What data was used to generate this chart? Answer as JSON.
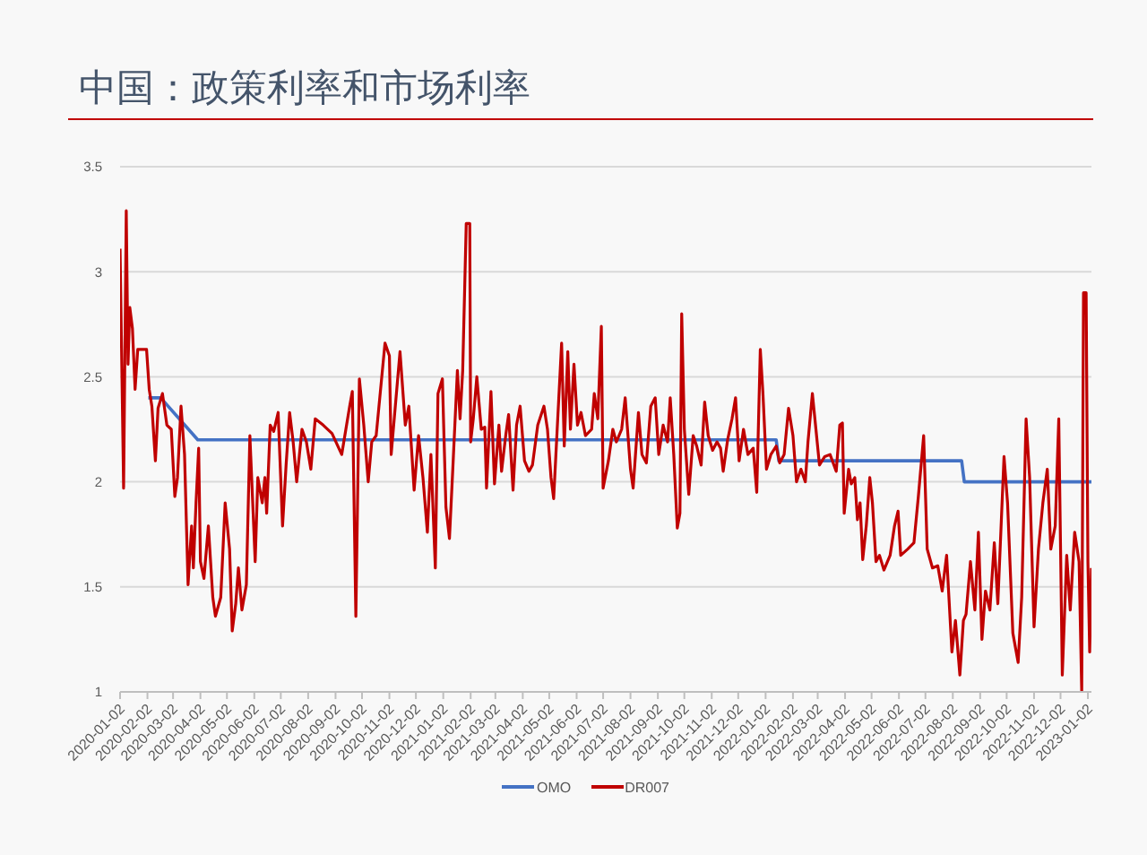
{
  "chart_data": {
    "type": "line",
    "title": "中国：政策利率和市场利率",
    "xlim": [
      "2020-01-02",
      "2023-01-06"
    ],
    "xticks": [
      "2020-01-02",
      "2020-02-02",
      "2020-03-02",
      "2020-04-02",
      "2020-05-02",
      "2020-06-02",
      "2020-07-02",
      "2020-08-02",
      "2020-09-02",
      "2020-10-02",
      "2020-11-02",
      "2020-12-02",
      "2021-01-02",
      "2021-02-02",
      "2021-03-02",
      "2021-04-02",
      "2021-05-02",
      "2021-06-02",
      "2021-07-02",
      "2021-08-02",
      "2021-09-02",
      "2021-10-02",
      "2021-11-02",
      "2021-12-02",
      "2022-01-02",
      "2022-02-02",
      "2022-03-02",
      "2022-04-02",
      "2022-05-02",
      "2022-06-02",
      "2022-07-02",
      "2022-08-02",
      "2022-09-02",
      "2022-10-02",
      "2022-11-02",
      "2022-12-02",
      "2023-01-02"
    ],
    "ylim": [
      1,
      3.5
    ],
    "yticks": [
      1,
      1.5,
      2,
      2.5,
      3,
      3.5
    ],
    "grid": "y",
    "legend": "bottom",
    "series": [
      {
        "name": "OMO",
        "color": "#4472c4",
        "x": [
          "2020-02-03",
          "2020-02-17",
          "2020-03-30",
          "2022-01-14",
          "2022-01-17",
          "2022-08-12",
          "2022-08-15",
          "2023-01-06"
        ],
        "values": [
          2.4,
          2.4,
          2.2,
          2.2,
          2.1,
          2.1,
          2.0,
          2.0
        ]
      },
      {
        "name": "DR007",
        "color": "#c00000",
        "x": [
          "2020-01-02",
          "2020-01-06",
          "2020-01-09",
          "2020-01-11",
          "2020-01-13",
          "2020-01-16",
          "2020-01-19",
          "2020-01-22",
          "2020-02-01",
          "2020-02-04",
          "2020-02-07",
          "2020-02-11",
          "2020-02-14",
          "2020-02-19",
          "2020-02-24",
          "2020-02-29",
          "2020-03-04",
          "2020-03-07",
          "2020-03-11",
          "2020-03-15",
          "2020-03-19",
          "2020-03-23",
          "2020-03-25",
          "2020-03-28",
          "2020-03-31",
          "2020-04-02",
          "2020-04-06",
          "2020-04-11",
          "2020-04-16",
          "2020-04-19",
          "2020-04-25",
          "2020-04-30",
          "2020-05-05",
          "2020-05-08",
          "2020-05-12",
          "2020-05-15",
          "2020-05-19",
          "2020-05-24",
          "2020-05-28",
          "2020-06-03",
          "2020-06-06",
          "2020-06-11",
          "2020-06-14",
          "2020-06-16",
          "2020-06-20",
          "2020-06-24",
          "2020-06-29",
          "2020-07-04",
          "2020-07-08",
          "2020-07-12",
          "2020-07-16",
          "2020-07-20",
          "2020-07-26",
          "2020-07-31",
          "2020-08-05",
          "2020-08-10",
          "2020-08-19",
          "2020-08-29",
          "2020-09-09",
          "2020-09-18",
          "2020-09-21",
          "2020-09-25",
          "2020-09-29",
          "2020-10-04",
          "2020-10-09",
          "2020-10-13",
          "2020-10-18",
          "2020-10-28",
          "2020-11-02",
          "2020-11-04",
          "2020-11-14",
          "2020-11-20",
          "2020-11-24",
          "2020-11-30",
          "2020-12-05",
          "2020-12-10",
          "2020-12-15",
          "2020-12-19",
          "2020-12-24",
          "2020-12-27",
          "2021-01-01",
          "2021-01-05",
          "2021-01-09",
          "2021-01-13",
          "2021-01-18",
          "2021-01-21",
          "2021-01-24",
          "2021-01-28",
          "2021-02-01",
          "2021-02-02",
          "2021-02-05",
          "2021-02-09",
          "2021-02-14",
          "2021-02-18",
          "2021-02-20",
          "2021-02-25",
          "2021-03-01",
          "2021-03-06",
          "2021-03-09",
          "2021-03-14",
          "2021-03-17",
          "2021-03-22",
          "2021-03-26",
          "2021-03-30",
          "2021-04-04",
          "2021-04-09",
          "2021-04-13",
          "2021-04-19",
          "2021-04-26",
          "2021-04-30",
          "2021-05-04",
          "2021-05-07",
          "2021-05-11",
          "2021-05-16",
          "2021-05-19",
          "2021-05-23",
          "2021-05-26",
          "2021-05-30",
          "2021-06-03",
          "2021-06-07",
          "2021-06-12",
          "2021-06-19",
          "2021-06-22",
          "2021-06-26",
          "2021-06-30",
          "2021-07-02",
          "2021-07-08",
          "2021-07-13",
          "2021-07-17",
          "2021-07-23",
          "2021-07-27",
          "2021-08-02",
          "2021-08-05",
          "2021-08-11",
          "2021-08-15",
          "2021-08-20",
          "2021-08-25",
          "2021-08-30",
          "2021-09-03",
          "2021-09-08",
          "2021-09-13",
          "2021-09-16",
          "2021-09-20",
          "2021-09-24",
          "2021-09-27",
          "2021-09-29",
          "2021-10-02",
          "2021-10-07",
          "2021-10-12",
          "2021-10-16",
          "2021-10-21",
          "2021-10-25",
          "2021-10-29",
          "2021-11-03",
          "2021-11-08",
          "2021-11-12",
          "2021-11-15",
          "2021-11-20",
          "2021-11-25",
          "2021-11-29",
          "2021-12-03",
          "2021-12-08",
          "2021-12-13",
          "2021-12-19",
          "2021-12-23",
          "2021-12-27",
          "2021-12-30",
          "2022-01-03",
          "2022-01-08",
          "2022-01-14",
          "2022-01-18",
          "2022-01-23",
          "2022-01-28",
          "2022-02-02",
          "2022-02-06",
          "2022-02-11",
          "2022-02-16",
          "2022-02-19",
          "2022-02-24",
          "2022-02-28",
          "2022-03-04",
          "2022-03-10",
          "2022-03-16",
          "2022-03-23",
          "2022-03-27",
          "2022-03-30",
          "2022-04-01",
          "2022-04-06",
          "2022-04-09",
          "2022-04-13",
          "2022-04-16",
          "2022-04-19",
          "2022-04-22",
          "2022-04-26",
          "2022-04-30",
          "2022-05-03",
          "2022-05-07",
          "2022-05-11",
          "2022-05-16",
          "2022-05-23",
          "2022-05-28",
          "2022-06-01",
          "2022-06-04",
          "2022-06-12",
          "2022-06-19",
          "2022-06-24",
          "2022-06-30",
          "2022-07-04",
          "2022-07-10",
          "2022-07-16",
          "2022-07-21",
          "2022-07-26",
          "2022-08-01",
          "2022-08-05",
          "2022-08-10",
          "2022-08-14",
          "2022-08-17",
          "2022-08-22",
          "2022-08-27",
          "2022-08-31",
          "2022-09-04",
          "2022-09-08",
          "2022-09-13",
          "2022-09-18",
          "2022-09-22",
          "2022-09-29",
          "2022-10-03",
          "2022-10-09",
          "2022-10-15",
          "2022-10-19",
          "2022-10-24",
          "2022-10-28",
          "2022-11-02",
          "2022-11-07",
          "2022-11-12",
          "2022-11-17",
          "2022-11-21",
          "2022-11-26",
          "2022-11-30",
          "2022-12-04",
          "2022-12-09",
          "2022-12-13",
          "2022-12-18",
          "2022-12-23",
          "2022-12-26",
          "2022-12-28",
          "2022-12-31",
          "2023-01-02",
          "2023-01-04",
          "2023-01-06"
        ],
        "values": [
          3.11,
          1.97,
          3.29,
          2.56,
          2.83,
          2.73,
          2.44,
          2.63,
          2.63,
          2.44,
          2.36,
          2.1,
          2.35,
          2.42,
          2.27,
          2.25,
          1.93,
          2.02,
          2.36,
          2.13,
          1.51,
          1.79,
          1.59,
          1.9,
          2.16,
          1.62,
          1.54,
          1.79,
          1.45,
          1.36,
          1.45,
          1.9,
          1.68,
          1.29,
          1.42,
          1.59,
          1.39,
          1.51,
          2.22,
          1.62,
          2.02,
          1.9,
          2.02,
          1.85,
          2.27,
          2.24,
          2.33,
          1.79,
          2.08,
          2.33,
          2.19,
          2.0,
          2.25,
          2.19,
          2.06,
          2.3,
          2.27,
          2.23,
          2.13,
          2.36,
          2.43,
          1.36,
          2.49,
          2.27,
          2.0,
          2.19,
          2.22,
          2.66,
          2.6,
          2.13,
          2.62,
          2.27,
          2.36,
          1.96,
          2.22,
          2.02,
          1.76,
          2.13,
          1.59,
          2.42,
          2.49,
          1.88,
          1.73,
          2.08,
          2.53,
          2.3,
          2.53,
          3.23,
          3.23,
          2.19,
          2.3,
          2.5,
          2.25,
          2.26,
          1.97,
          2.43,
          1.99,
          2.27,
          2.05,
          2.23,
          2.32,
          1.96,
          2.27,
          2.36,
          2.1,
          2.05,
          2.08,
          2.27,
          2.36,
          2.25,
          2.02,
          1.92,
          2.25,
          2.66,
          2.17,
          2.62,
          2.25,
          2.56,
          2.27,
          2.33,
          2.22,
          2.25,
          2.42,
          2.3,
          2.74,
          1.97,
          2.1,
          2.25,
          2.19,
          2.25,
          2.4,
          2.06,
          1.97,
          2.33,
          2.13,
          2.09,
          2.36,
          2.4,
          2.13,
          2.27,
          2.19,
          2.4,
          2.13,
          1.78,
          1.85,
          2.8,
          2.25,
          1.94,
          2.22,
          2.17,
          2.08,
          2.38,
          2.22,
          2.15,
          2.19,
          2.16,
          2.05,
          2.2,
          2.3,
          2.4,
          2.1,
          2.25,
          2.13,
          2.16,
          1.95,
          2.63,
          2.42,
          2.06,
          2.13,
          2.17,
          2.09,
          2.13,
          2.35,
          2.22,
          2.0,
          2.06,
          2.0,
          2.19,
          2.42,
          2.25,
          2.08,
          2.12,
          2.13,
          2.05,
          2.27,
          2.28,
          1.85,
          2.06,
          1.99,
          2.02,
          1.82,
          1.9,
          1.63,
          1.79,
          2.02,
          1.9,
          1.62,
          1.65,
          1.58,
          1.65,
          1.79,
          1.86,
          1.65,
          1.68,
          1.71,
          1.93,
          2.22,
          1.68,
          1.59,
          1.6,
          1.48,
          1.65,
          1.19,
          1.34,
          1.08,
          1.34,
          1.37,
          1.62,
          1.39,
          1.76,
          1.25,
          1.48,
          1.39,
          1.71,
          1.42,
          2.12,
          1.9,
          1.28,
          1.14,
          1.45,
          2.3,
          2.02,
          1.31,
          1.68,
          1.9,
          2.06,
          1.68,
          1.79,
          2.3,
          1.08,
          1.65,
          1.39,
          1.76,
          1.62,
          1.0,
          2.9,
          2.9,
          1.62,
          1.19,
          1.59
        ]
      }
    ]
  }
}
